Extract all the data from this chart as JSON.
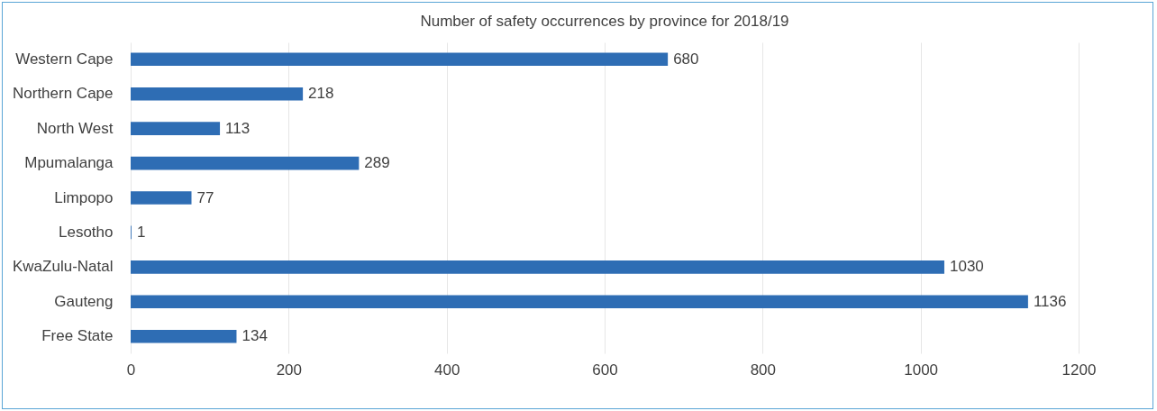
{
  "chart_data": {
    "type": "bar",
    "orientation": "horizontal",
    "title": "Number of safety occurrences by province for 2018/19",
    "categories": [
      "Western Cape",
      "Northern Cape",
      "North West",
      "Mpumalanga",
      "Limpopo",
      "Lesotho",
      "KwaZulu-Natal",
      "Gauteng",
      "Free State"
    ],
    "values": [
      680,
      218,
      113,
      289,
      77,
      1,
      1030,
      1136,
      134
    ],
    "color": "#2e6db4",
    "xlim": [
      0,
      1200
    ],
    "xticks": [
      0,
      200,
      400,
      600,
      800,
      1000,
      1200
    ],
    "grid": "x",
    "data_labels": true
  }
}
